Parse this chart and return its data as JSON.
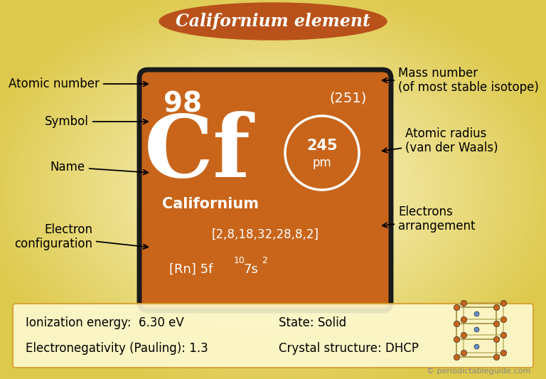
{
  "title": "Californium element",
  "element_symbol": "Cf",
  "atomic_number": "98",
  "mass_number": "(251)",
  "name": "Californium",
  "electron_config_short": "[2,8,18,32,28,8,2]",
  "atomic_radius": "245",
  "atomic_radius_unit": "pm",
  "ionization_energy": "Ionization energy:  6.30 eV",
  "electronegativity": "Electronegativity (Pauling): 1.3",
  "state": "State: Solid",
  "crystal_structure": "Crystal structure: DHCP",
  "copyright": "© periodictableguide.com",
  "card_color": "#c8651a",
  "card_border_color": "#1a1a1a",
  "title_bg_color": "#b8521a",
  "title_text_color": "#ffffff",
  "white": "#ffffff",
  "black": "#000000"
}
